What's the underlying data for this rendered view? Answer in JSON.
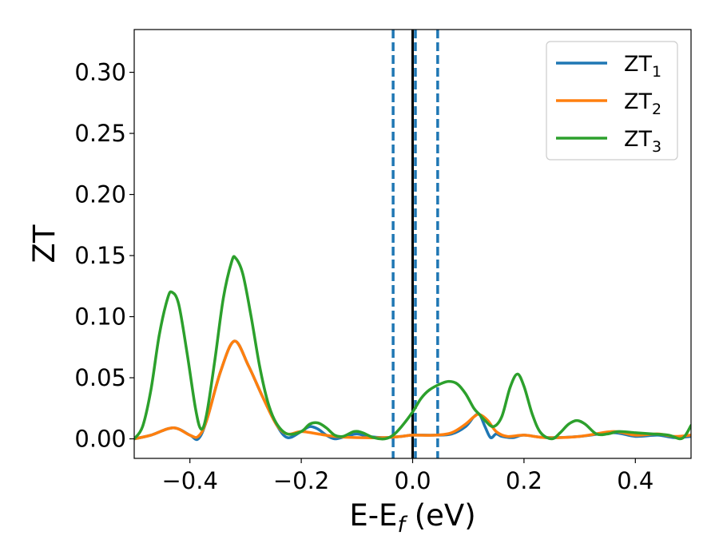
{
  "chart_data": {
    "type": "line",
    "title": "",
    "xlabel": "E-E",
    "xlabel_sub": "f",
    "xlabel_unit": " (eV)",
    "ylabel": "ZT",
    "xlim": [
      -0.5,
      0.5
    ],
    "ylim": [
      -0.016,
      0.335
    ],
    "xticks": [
      -0.4,
      -0.2,
      0.0,
      0.2,
      0.4
    ],
    "xtick_labels": [
      "−0.4",
      "−0.2",
      "0.0",
      "0.2",
      "0.4"
    ],
    "yticks": [
      0.0,
      0.05,
      0.1,
      0.15,
      0.2,
      0.25,
      0.3
    ],
    "ytick_labels": [
      "0.00",
      "0.05",
      "0.10",
      "0.15",
      "0.20",
      "0.25",
      "0.30"
    ],
    "grid": false,
    "legend_position": "top-right",
    "vertical_lines": [
      {
        "x": 0.0,
        "color": "#000000",
        "style": "solid"
      },
      {
        "x": -0.035,
        "color": "#1f77b4",
        "style": "dashed"
      },
      {
        "x": 0.005,
        "color": "#1f77b4",
        "style": "dashed"
      },
      {
        "x": 0.045,
        "color": "#1f77b4",
        "style": "dashed"
      }
    ],
    "series": [
      {
        "name": "ZT",
        "name_sub": "1",
        "color": "#1f77b4",
        "points": [
          [
            -0.5,
            0.0
          ],
          [
            -0.47,
            0.003
          ],
          [
            -0.43,
            0.009
          ],
          [
            -0.4,
            0.003
          ],
          [
            -0.385,
            0.0
          ],
          [
            -0.37,
            0.015
          ],
          [
            -0.345,
            0.055
          ],
          [
            -0.32,
            0.08
          ],
          [
            -0.295,
            0.06
          ],
          [
            -0.27,
            0.035
          ],
          [
            -0.245,
            0.012
          ],
          [
            -0.225,
            0.001
          ],
          [
            -0.2,
            0.006
          ],
          [
            -0.185,
            0.01
          ],
          [
            -0.17,
            0.008
          ],
          [
            -0.155,
            0.003
          ],
          [
            -0.14,
            0.0
          ],
          [
            -0.12,
            0.002
          ],
          [
            -0.1,
            0.004
          ],
          [
            -0.08,
            0.002
          ],
          [
            -0.05,
            0.001
          ],
          [
            -0.02,
            0.002
          ],
          [
            0.0,
            0.003
          ],
          [
            0.04,
            0.003
          ],
          [
            0.07,
            0.004
          ],
          [
            0.095,
            0.01
          ],
          [
            0.11,
            0.018
          ],
          [
            0.12,
            0.02
          ],
          [
            0.13,
            0.01
          ],
          [
            0.14,
            0.001
          ],
          [
            0.15,
            0.004
          ],
          [
            0.16,
            0.002
          ],
          [
            0.18,
            0.001
          ],
          [
            0.2,
            0.003
          ],
          [
            0.24,
            0.001
          ],
          [
            0.3,
            0.002
          ],
          [
            0.36,
            0.005
          ],
          [
            0.4,
            0.002
          ],
          [
            0.44,
            0.003
          ],
          [
            0.47,
            0.001
          ],
          [
            0.5,
            0.002
          ]
        ]
      },
      {
        "name": "ZT",
        "name_sub": "2",
        "color": "#ff7f0e",
        "points": [
          [
            -0.5,
            0.0
          ],
          [
            -0.47,
            0.003
          ],
          [
            -0.43,
            0.009
          ],
          [
            -0.4,
            0.003
          ],
          [
            -0.385,
            0.002
          ],
          [
            -0.37,
            0.015
          ],
          [
            -0.345,
            0.055
          ],
          [
            -0.32,
            0.08
          ],
          [
            -0.295,
            0.06
          ],
          [
            -0.27,
            0.035
          ],
          [
            -0.245,
            0.012
          ],
          [
            -0.225,
            0.004
          ],
          [
            -0.2,
            0.006
          ],
          [
            -0.17,
            0.004
          ],
          [
            -0.14,
            0.002
          ],
          [
            -0.1,
            0.001
          ],
          [
            -0.05,
            0.001
          ],
          [
            -0.02,
            0.002
          ],
          [
            0.0,
            0.003
          ],
          [
            0.04,
            0.003
          ],
          [
            0.07,
            0.005
          ],
          [
            0.095,
            0.012
          ],
          [
            0.11,
            0.018
          ],
          [
            0.12,
            0.02
          ],
          [
            0.135,
            0.015
          ],
          [
            0.15,
            0.006
          ],
          [
            0.17,
            0.002
          ],
          [
            0.2,
            0.003
          ],
          [
            0.24,
            0.001
          ],
          [
            0.3,
            0.002
          ],
          [
            0.36,
            0.006
          ],
          [
            0.4,
            0.003
          ],
          [
            0.44,
            0.004
          ],
          [
            0.47,
            0.002
          ],
          [
            0.5,
            0.003
          ]
        ]
      },
      {
        "name": "ZT",
        "name_sub": "3",
        "color": "#2ca02c",
        "points": [
          [
            -0.5,
            0.0
          ],
          [
            -0.485,
            0.01
          ],
          [
            -0.47,
            0.04
          ],
          [
            -0.455,
            0.085
          ],
          [
            -0.44,
            0.115
          ],
          [
            -0.432,
            0.12
          ],
          [
            -0.42,
            0.11
          ],
          [
            -0.405,
            0.07
          ],
          [
            -0.39,
            0.025
          ],
          [
            -0.38,
            0.008
          ],
          [
            -0.37,
            0.02
          ],
          [
            -0.355,
            0.065
          ],
          [
            -0.34,
            0.115
          ],
          [
            -0.325,
            0.145
          ],
          [
            -0.318,
            0.148
          ],
          [
            -0.305,
            0.135
          ],
          [
            -0.29,
            0.1
          ],
          [
            -0.275,
            0.06
          ],
          [
            -0.26,
            0.03
          ],
          [
            -0.245,
            0.013
          ],
          [
            -0.225,
            0.004
          ],
          [
            -0.2,
            0.006
          ],
          [
            -0.185,
            0.012
          ],
          [
            -0.17,
            0.013
          ],
          [
            -0.155,
            0.009
          ],
          [
            -0.14,
            0.003
          ],
          [
            -0.125,
            0.002
          ],
          [
            -0.105,
            0.006
          ],
          [
            -0.09,
            0.005
          ],
          [
            -0.07,
            0.001
          ],
          [
            -0.05,
            0.0
          ],
          [
            -0.035,
            0.003
          ],
          [
            -0.02,
            0.01
          ],
          [
            0.0,
            0.022
          ],
          [
            0.015,
            0.033
          ],
          [
            0.03,
            0.04
          ],
          [
            0.05,
            0.045
          ],
          [
            0.065,
            0.047
          ],
          [
            0.08,
            0.045
          ],
          [
            0.095,
            0.037
          ],
          [
            0.11,
            0.025
          ],
          [
            0.12,
            0.02
          ],
          [
            0.13,
            0.015
          ],
          [
            0.145,
            0.01
          ],
          [
            0.16,
            0.018
          ],
          [
            0.175,
            0.042
          ],
          [
            0.188,
            0.053
          ],
          [
            0.2,
            0.043
          ],
          [
            0.215,
            0.02
          ],
          [
            0.23,
            0.005
          ],
          [
            0.25,
            0.0
          ],
          [
            0.265,
            0.005
          ],
          [
            0.28,
            0.012
          ],
          [
            0.295,
            0.015
          ],
          [
            0.31,
            0.012
          ],
          [
            0.33,
            0.004
          ],
          [
            0.35,
            0.004
          ],
          [
            0.37,
            0.006
          ],
          [
            0.4,
            0.005
          ],
          [
            0.43,
            0.004
          ],
          [
            0.46,
            0.003
          ],
          [
            0.48,
            0.0
          ],
          [
            0.49,
            0.003
          ],
          [
            0.5,
            0.011
          ]
        ]
      }
    ]
  }
}
